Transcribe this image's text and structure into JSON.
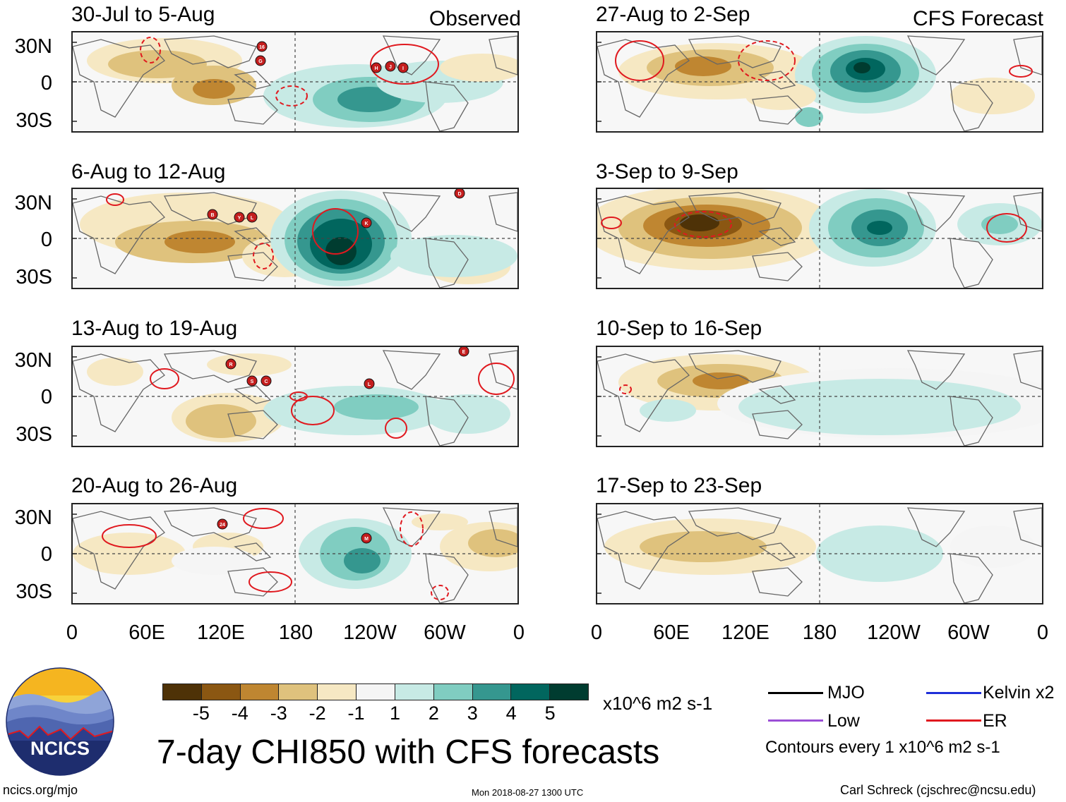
{
  "panels": [
    {
      "id": "obs1",
      "title": "30-Jul to 5-Aug",
      "tag": "Observed",
      "storms": [
        "16",
        "G",
        "H",
        "J",
        "I"
      ]
    },
    {
      "id": "obs2",
      "title": "6-Aug to 12-Aug",
      "tag": "",
      "storms": [
        "B",
        "Y",
        "L",
        "K",
        "D"
      ]
    },
    {
      "id": "obs3",
      "title": "13-Aug to 19-Aug",
      "tag": "",
      "storms": [
        "R",
        "S",
        "C",
        "L",
        "E"
      ]
    },
    {
      "id": "obs4",
      "title": "20-Aug to 26-Aug",
      "tag": "",
      "storms": [
        "24",
        "M"
      ]
    },
    {
      "id": "fc1",
      "title": "27-Aug to 2-Sep",
      "tag": "CFS Forecast",
      "storms": []
    },
    {
      "id": "fc2",
      "title": "3-Sep to 9-Sep",
      "tag": "",
      "storms": []
    },
    {
      "id": "fc3",
      "title": "10-Sep to 16-Sep",
      "tag": "",
      "storms": []
    },
    {
      "id": "fc4",
      "title": "17-Sep to 23-Sep",
      "tag": "",
      "storms": []
    }
  ],
  "axes": {
    "lat_labels": [
      "30N",
      "0",
      "30S"
    ],
    "lon_labels": [
      "0",
      "60E",
      "120E",
      "180",
      "120W",
      "60W",
      "0"
    ]
  },
  "colorbar": {
    "colors": [
      "#4e3207",
      "#8b5712",
      "#bf8631",
      "#dfc27d",
      "#f6e8c3",
      "#f5f5f5",
      "#c7eae5",
      "#80cdc1",
      "#35978f",
      "#01665e",
      "#003c30"
    ],
    "ticks": [
      "-5",
      "-4",
      "-3",
      "-2",
      "-1",
      "1",
      "2",
      "3",
      "4",
      "5"
    ],
    "units": "x10^6 m2 s-1"
  },
  "title": "7-day CHI850 with CFS forecasts",
  "legend": {
    "items": [
      {
        "label": "MJO",
        "color": "#000000"
      },
      {
        "label": "Kelvin x2",
        "color": "#1f2fd8"
      },
      {
        "label": "Low",
        "color": "#9b4fd6"
      },
      {
        "label": "ER",
        "color": "#e0191f"
      }
    ],
    "contour_note": "Contours every 1 x10^6 m2 s-1"
  },
  "logo_text": "NCICS",
  "footer": {
    "url": "ncics.org/mjo",
    "timestamp": "Mon 2018-08-27 1300 UTC",
    "author": "Carl Schreck (cjschrec@ncsu.edu)"
  }
}
